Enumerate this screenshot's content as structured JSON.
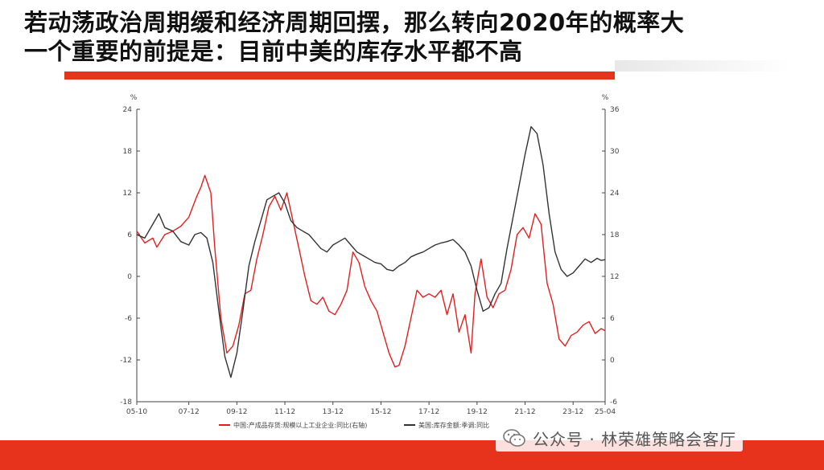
{
  "header": {
    "title_line1": "若动荡政治周期缓和经济周期回摆，那么转向2020年的概率大",
    "title_line2": "一个重要的前提是：目前中美的库存水平都不高"
  },
  "watermark": {
    "text": "公众号 · 林荣雄策略会客厅",
    "icon": "wechat-icon"
  },
  "colors": {
    "accent": "#e8331c",
    "china_series": "#e02020",
    "us_series": "#333333"
  },
  "chart_data": {
    "type": "line",
    "title": "",
    "left_axis": {
      "unit": "%",
      "range": [
        -18,
        24
      ],
      "ticks": [
        "24",
        "18",
        "12",
        "6",
        "0",
        "-6",
        "-12",
        "-18"
      ]
    },
    "right_axis": {
      "unit": "%",
      "range": [
        -6,
        36
      ],
      "ticks": [
        "36",
        "30",
        "24",
        "18",
        "12",
        "6",
        "0",
        "-6"
      ]
    },
    "x_range": [
      "2005-10",
      "2025-04"
    ],
    "x_ticks": [
      "05-10",
      "07-12",
      "09-12",
      "11-12",
      "13-12",
      "15-12",
      "17-12",
      "19-12",
      "21-12",
      "23-12",
      "25-04"
    ],
    "grid": false,
    "legend_position": "bottom",
    "series": [
      {
        "name": "中国:产成品存货:规模以上工业企业:同比(右轴)",
        "axis": "right",
        "color": "#e02020",
        "points": [
          [
            "2005-10",
            18.5
          ],
          [
            "2006-02",
            16.8
          ],
          [
            "2006-06",
            17.5
          ],
          [
            "2006-08",
            16.2
          ],
          [
            "2006-12",
            18.0
          ],
          [
            "2007-04",
            18.5
          ],
          [
            "2007-08",
            19.2
          ],
          [
            "2007-12",
            20.5
          ],
          [
            "2008-02",
            22.0
          ],
          [
            "2008-04",
            23.5
          ],
          [
            "2008-06",
            24.8
          ],
          [
            "2008-08",
            26.5
          ],
          [
            "2008-11",
            24.0
          ],
          [
            "2009-01",
            16.0
          ],
          [
            "2009-04",
            6.0
          ],
          [
            "2009-07",
            1.0
          ],
          [
            "2009-10",
            2.0
          ],
          [
            "2010-01",
            5.0
          ],
          [
            "2010-04",
            9.5
          ],
          [
            "2010-07",
            10.0
          ],
          [
            "2010-10",
            14.5
          ],
          [
            "2011-01",
            18.0
          ],
          [
            "2011-04",
            22.0
          ],
          [
            "2011-07",
            23.5
          ],
          [
            "2011-10",
            21.5
          ],
          [
            "2012-01",
            24.0
          ],
          [
            "2012-04",
            20.0
          ],
          [
            "2012-07",
            16.0
          ],
          [
            "2012-10",
            12.0
          ],
          [
            "2013-01",
            8.5
          ],
          [
            "2013-04",
            8.0
          ],
          [
            "2013-07",
            9.0
          ],
          [
            "2013-10",
            7.0
          ],
          [
            "2014-01",
            6.5
          ],
          [
            "2014-04",
            8.0
          ],
          [
            "2014-07",
            10.0
          ],
          [
            "2014-10",
            15.5
          ],
          [
            "2015-01",
            14.0
          ],
          [
            "2015-04",
            10.5
          ],
          [
            "2015-07",
            8.5
          ],
          [
            "2015-10",
            7.0
          ],
          [
            "2016-01",
            4.0
          ],
          [
            "2016-04",
            1.0
          ],
          [
            "2016-07",
            -1.0
          ],
          [
            "2016-09",
            -0.8
          ],
          [
            "2016-12",
            2.0
          ],
          [
            "2017-03",
            6.0
          ],
          [
            "2017-06",
            10.0
          ],
          [
            "2017-09",
            9.0
          ],
          [
            "2017-12",
            9.5
          ],
          [
            "2018-03",
            9.0
          ],
          [
            "2018-06",
            10.0
          ],
          [
            "2018-09",
            6.5
          ],
          [
            "2018-12",
            9.5
          ],
          [
            "2019-03",
            4.0
          ],
          [
            "2019-06",
            6.5
          ],
          [
            "2019-09",
            1.0
          ],
          [
            "2019-11",
            9.5
          ],
          [
            "2020-02",
            14.5
          ],
          [
            "2020-05",
            9.0
          ],
          [
            "2020-08",
            7.5
          ],
          [
            "2020-11",
            9.5
          ],
          [
            "2021-02",
            10.0
          ],
          [
            "2021-05",
            13.0
          ],
          [
            "2021-08",
            18.0
          ],
          [
            "2021-11",
            19.0
          ],
          [
            "2022-02",
            17.5
          ],
          [
            "2022-05",
            21.0
          ],
          [
            "2022-08",
            19.5
          ],
          [
            "2022-11",
            11.0
          ],
          [
            "2023-02",
            8.0
          ],
          [
            "2023-05",
            3.0
          ],
          [
            "2023-08",
            2.0
          ],
          [
            "2023-11",
            3.5
          ],
          [
            "2024-02",
            4.0
          ],
          [
            "2024-05",
            5.0
          ],
          [
            "2024-08",
            5.5
          ],
          [
            "2024-11",
            3.8
          ],
          [
            "2025-02",
            4.5
          ],
          [
            "2025-04",
            4.2
          ]
        ]
      },
      {
        "name": "美国:库存金额:季调:同比",
        "axis": "left",
        "color": "#333333",
        "points": [
          [
            "2005-10",
            6.0
          ],
          [
            "2006-02",
            5.5
          ],
          [
            "2006-06",
            7.5
          ],
          [
            "2006-09",
            9.0
          ],
          [
            "2006-12",
            7.0
          ],
          [
            "2007-04",
            6.5
          ],
          [
            "2007-08",
            5.0
          ],
          [
            "2007-12",
            4.5
          ],
          [
            "2008-03",
            6.0
          ],
          [
            "2008-06",
            6.3
          ],
          [
            "2008-09",
            5.5
          ],
          [
            "2008-12",
            2.0
          ],
          [
            "2009-03",
            -5.0
          ],
          [
            "2009-06",
            -11.5
          ],
          [
            "2009-09",
            -14.5
          ],
          [
            "2009-12",
            -11.0
          ],
          [
            "2010-03",
            -5.0
          ],
          [
            "2010-06",
            1.5
          ],
          [
            "2010-09",
            5.0
          ],
          [
            "2010-12",
            8.0
          ],
          [
            "2011-03",
            11.0
          ],
          [
            "2011-06",
            11.5
          ],
          [
            "2011-09",
            12.0
          ],
          [
            "2011-12",
            10.5
          ],
          [
            "2012-03",
            8.0
          ],
          [
            "2012-06",
            7.0
          ],
          [
            "2012-09",
            6.5
          ],
          [
            "2012-12",
            6.0
          ],
          [
            "2013-03",
            5.0
          ],
          [
            "2013-06",
            4.0
          ],
          [
            "2013-09",
            3.5
          ],
          [
            "2013-12",
            4.5
          ],
          [
            "2014-03",
            5.0
          ],
          [
            "2014-06",
            5.5
          ],
          [
            "2014-09",
            4.5
          ],
          [
            "2014-12",
            3.5
          ],
          [
            "2015-03",
            3.0
          ],
          [
            "2015-06",
            2.5
          ],
          [
            "2015-09",
            2.0
          ],
          [
            "2015-12",
            1.8
          ],
          [
            "2016-03",
            1.0
          ],
          [
            "2016-06",
            0.8
          ],
          [
            "2016-09",
            1.5
          ],
          [
            "2016-12",
            2.0
          ],
          [
            "2017-03",
            2.8
          ],
          [
            "2017-06",
            3.2
          ],
          [
            "2017-09",
            3.5
          ],
          [
            "2017-12",
            4.0
          ],
          [
            "2018-03",
            4.5
          ],
          [
            "2018-06",
            4.8
          ],
          [
            "2018-09",
            5.0
          ],
          [
            "2018-12",
            5.3
          ],
          [
            "2019-03",
            4.5
          ],
          [
            "2019-06",
            3.5
          ],
          [
            "2019-09",
            1.5
          ],
          [
            "2019-12",
            -2.0
          ],
          [
            "2020-03",
            -5.0
          ],
          [
            "2020-06",
            -4.5
          ],
          [
            "2020-09",
            -2.5
          ],
          [
            "2020-12",
            -1.0
          ],
          [
            "2021-03",
            4.0
          ],
          [
            "2021-06",
            8.5
          ],
          [
            "2021-09",
            13.0
          ],
          [
            "2021-12",
            17.5
          ],
          [
            "2022-03",
            21.5
          ],
          [
            "2022-06",
            20.5
          ],
          [
            "2022-09",
            16.0
          ],
          [
            "2022-12",
            9.0
          ],
          [
            "2023-03",
            3.5
          ],
          [
            "2023-06",
            1.0
          ],
          [
            "2023-09",
            0.0
          ],
          [
            "2023-12",
            0.5
          ],
          [
            "2024-03",
            1.5
          ],
          [
            "2024-06",
            2.5
          ],
          [
            "2024-09",
            2.0
          ],
          [
            "2024-12",
            2.6
          ],
          [
            "2025-02",
            2.3
          ],
          [
            "2025-04",
            2.4
          ]
        ]
      }
    ]
  }
}
